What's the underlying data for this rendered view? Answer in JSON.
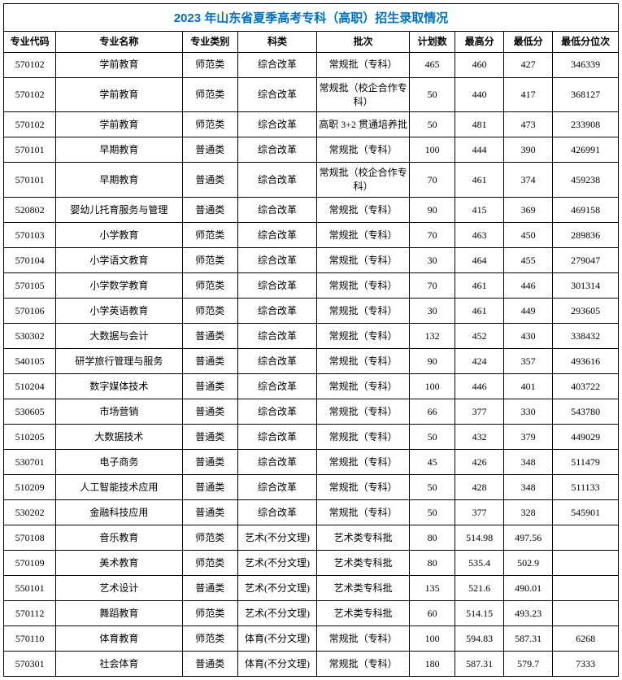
{
  "title": "2023 年山东省夏季高考专科（高职）招生录取情况",
  "columns": [
    "专业代码",
    "专业名称",
    "专业类别",
    "科类",
    "批次",
    "计划数",
    "最高分",
    "最低分",
    "最低分位次"
  ],
  "rows": [
    [
      "570102",
      "学前教育",
      "师范类",
      "综合改革",
      "常规批（专科）",
      "465",
      "460",
      "427",
      "346339"
    ],
    [
      "570102",
      "学前教育",
      "师范类",
      "综合改革",
      "常规批（校企合作专科）",
      "50",
      "440",
      "417",
      "368127"
    ],
    [
      "570102",
      "学前教育",
      "师范类",
      "综合改革",
      "高职 3+2 贯通培养批",
      "50",
      "481",
      "473",
      "233908"
    ],
    [
      "570101",
      "早期教育",
      "普通类",
      "综合改革",
      "常规批（专科）",
      "100",
      "444",
      "390",
      "426991"
    ],
    [
      "570101",
      "早期教育",
      "普通类",
      "综合改革",
      "常规批（校企合作专科）",
      "70",
      "461",
      "374",
      "459238"
    ],
    [
      "520802",
      "婴幼儿托育服务与管理",
      "普通类",
      "综合改革",
      "常规批（专科）",
      "90",
      "415",
      "369",
      "469158"
    ],
    [
      "570103",
      "小学教育",
      "师范类",
      "综合改革",
      "常规批（专科）",
      "70",
      "463",
      "450",
      "289836"
    ],
    [
      "570104",
      "小学语文教育",
      "师范类",
      "综合改革",
      "常规批（专科）",
      "30",
      "464",
      "455",
      "279047"
    ],
    [
      "570105",
      "小学数学教育",
      "师范类",
      "综合改革",
      "常规批（专科）",
      "70",
      "461",
      "446",
      "301314"
    ],
    [
      "570106",
      "小学英语教育",
      "师范类",
      "综合改革",
      "常规批（专科）",
      "30",
      "461",
      "449",
      "293605"
    ],
    [
      "530302",
      "大数据与会计",
      "普通类",
      "综合改革",
      "常规批（专科）",
      "132",
      "452",
      "430",
      "338432"
    ],
    [
      "540105",
      "研学旅行管理与服务",
      "普通类",
      "综合改革",
      "常规批（专科）",
      "90",
      "424",
      "357",
      "493616"
    ],
    [
      "510204",
      "数字媒体技术",
      "普通类",
      "综合改革",
      "常规批（专科）",
      "100",
      "446",
      "401",
      "403722"
    ],
    [
      "530605",
      "市场营销",
      "普通类",
      "综合改革",
      "常规批（专科）",
      "66",
      "377",
      "330",
      "543780"
    ],
    [
      "510205",
      "大数据技术",
      "普通类",
      "综合改革",
      "常规批（专科）",
      "50",
      "432",
      "379",
      "449029"
    ],
    [
      "530701",
      "电子商务",
      "普通类",
      "综合改革",
      "常规批（专科）",
      "45",
      "426",
      "348",
      "511479"
    ],
    [
      "510209",
      "人工智能技术应用",
      "普通类",
      "综合改革",
      "常规批（专科）",
      "50",
      "428",
      "348",
      "511133"
    ],
    [
      "530202",
      "金融科技应用",
      "普通类",
      "综合改革",
      "常规批（专科）",
      "50",
      "377",
      "328",
      "545901"
    ],
    [
      "570108",
      "音乐教育",
      "师范类",
      "艺术(不分文理)",
      "艺术类专科批",
      "80",
      "514.98",
      "497.56",
      ""
    ],
    [
      "570109",
      "美术教育",
      "师范类",
      "艺术(不分文理)",
      "艺术类专科批",
      "80",
      "535.4",
      "502.9",
      ""
    ],
    [
      "550101",
      "艺术设计",
      "普通类",
      "艺术(不分文理)",
      "艺术类专科批",
      "135",
      "521.6",
      "490.01",
      ""
    ],
    [
      "570112",
      "舞蹈教育",
      "师范类",
      "艺术(不分文理)",
      "艺术类专科批",
      "60",
      "514.15",
      "493.23",
      ""
    ],
    [
      "570110",
      "体育教育",
      "师范类",
      "体育(不分文理)",
      "常规批（专科）",
      "100",
      "594.83",
      "587.31",
      "6268"
    ],
    [
      "570301",
      "社会体育",
      "普通类",
      "体育(不分文理)",
      "常规批（专科）",
      "180",
      "587.31",
      "579.7",
      "7333"
    ]
  ],
  "style": {
    "title_color": "#0070c0",
    "border_color": "#000000",
    "bg_color": "#ffffff",
    "font_size_body": 12,
    "font_size_title": 15
  }
}
